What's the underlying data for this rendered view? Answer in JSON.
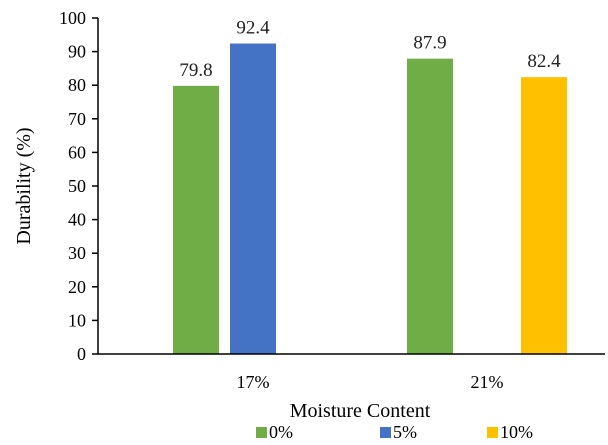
{
  "chart_data": {
    "type": "bar",
    "title": "",
    "xlabel": "Moisture Content",
    "ylabel": "Durability (%)",
    "ylim": [
      0,
      100
    ],
    "yticks": [
      "0",
      "10",
      "20",
      "30",
      "40",
      "50",
      "60",
      "70",
      "80",
      "90",
      "100"
    ],
    "categories": [
      "17%",
      "21%"
    ],
    "series": [
      {
        "name": "0%",
        "color": "#70ad47",
        "values": [
          79.8,
          87.9
        ],
        "labels": [
          "79.8",
          "87.9"
        ]
      },
      {
        "name": "5%",
        "color": "#4472c4",
        "values": [
          92.4,
          null
        ],
        "labels": [
          "92.4",
          ""
        ]
      },
      {
        "name": "10%",
        "color": "#ffc000",
        "values": [
          null,
          82.4
        ],
        "labels": [
          "",
          "82.4"
        ]
      }
    ],
    "grid": false,
    "legend_position": "bottom"
  }
}
